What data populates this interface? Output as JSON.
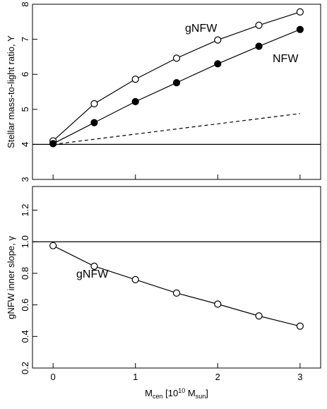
{
  "chart_data": [
    {
      "type": "line",
      "xlabel": "",
      "ylabel": "Stellar mass-to-light ratio, Υ",
      "xlim": [
        -0.25,
        3.25
      ],
      "ylim": [
        3,
        8
      ],
      "x_ticks": [
        "0",
        "1",
        "2",
        "3"
      ],
      "y_ticks": [
        "3",
        "4",
        "5",
        "6",
        "7",
        "8"
      ],
      "series": [
        {
          "name": "gNFW",
          "style": "open-circles-solid",
          "x": [
            0,
            0.5,
            1,
            1.5,
            2,
            2.5,
            3
          ],
          "y": [
            4.1,
            5.16,
            5.86,
            6.46,
            6.98,
            7.4,
            7.78
          ]
        },
        {
          "name": "NFW",
          "style": "filled-circles-solid",
          "x": [
            0,
            0.5,
            1,
            1.5,
            2,
            2.5,
            3
          ],
          "y": [
            4.02,
            4.62,
            5.22,
            5.76,
            6.3,
            6.8,
            7.28
          ]
        },
        {
          "style": "dashed",
          "x": [
            0,
            3
          ],
          "y": [
            4.0,
            4.88
          ]
        },
        {
          "style": "solid-reference",
          "x": [
            -0.25,
            3.25
          ],
          "y": [
            4.0,
            4.0
          ]
        }
      ]
    },
    {
      "type": "line",
      "xlabel": "M_cen [10^10 M_sun]",
      "ylabel": "gNFW inner slope, γ",
      "xlim": [
        -0.25,
        3.25
      ],
      "ylim": [
        0.2,
        1.35
      ],
      "x_ticks": [
        "0",
        "1",
        "2",
        "3"
      ],
      "y_ticks": [
        "0.2",
        "0.4",
        "0.6",
        "0.8",
        "1.0",
        "1.2"
      ],
      "series": [
        {
          "name": "gNFW",
          "style": "open-circles-solid",
          "x": [
            0,
            0.5,
            1,
            1.5,
            2,
            2.5,
            3
          ],
          "y": [
            0.975,
            0.845,
            0.76,
            0.675,
            0.605,
            0.53,
            0.465
          ]
        },
        {
          "style": "solid-reference",
          "x": [
            -0.25,
            3.25
          ],
          "y": [
            1.0,
            1.0
          ]
        }
      ]
    }
  ],
  "labels": {
    "top_gnfw": "gNFW",
    "top_nfw": "NFW",
    "bottom_gnfw": "gNFW",
    "xlabel_main": "M",
    "xlabel_sub1": "cen",
    "xlabel_bracket_open": " [10",
    "xlabel_sup": "10",
    "xlabel_m": " M",
    "xlabel_sub2": "sun",
    "xlabel_bracket_close": "]"
  }
}
